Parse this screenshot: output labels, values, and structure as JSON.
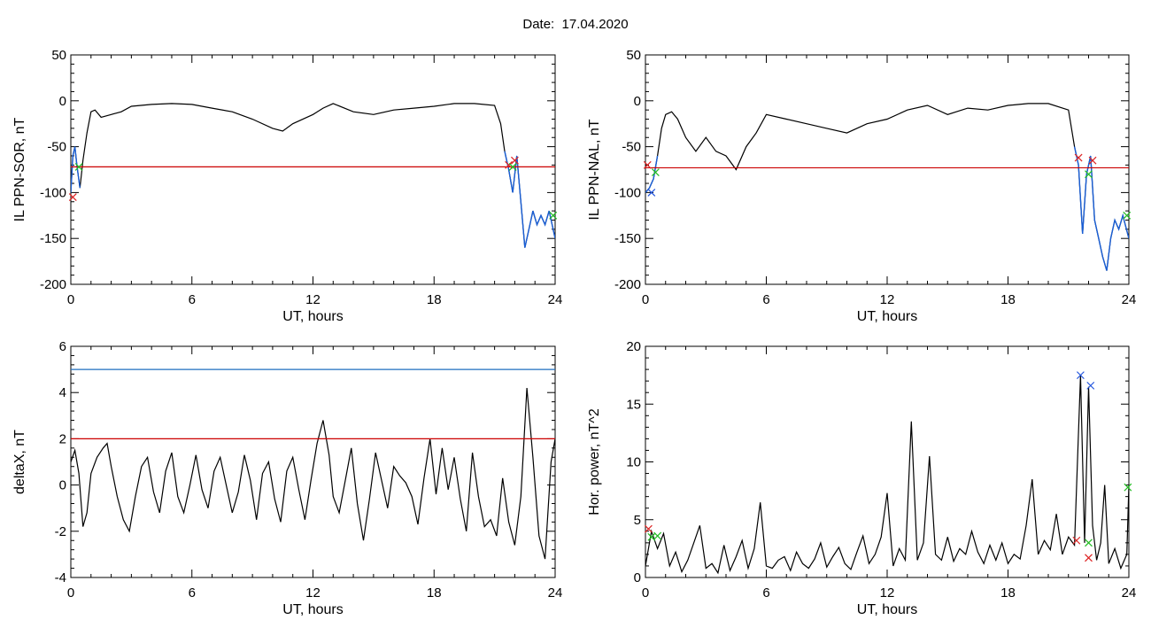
{
  "title": "Date:  17.04.2020",
  "colors": {
    "axes": "#000000",
    "data": "#000000",
    "threshold_red": "#cc0000",
    "threshold_blue": "#1f6fbf",
    "highlight_blue": "#1a5fd6",
    "marker_red": "#dd2222",
    "marker_green": "#22bb22",
    "marker_blue": "#2255dd"
  },
  "chart_data": [
    {
      "id": "sor",
      "type": "line",
      "xlabel": "UT, hours",
      "ylabel": "IL PPN-SOR, nT",
      "xlim": [
        0,
        24
      ],
      "ylim": [
        -200,
        50
      ],
      "xticks": [
        0,
        6,
        12,
        18,
        24
      ],
      "yticks": [
        -200,
        -150,
        -100,
        -50,
        0,
        50
      ],
      "grid": false,
      "threshold": {
        "value": -72,
        "color": "red"
      },
      "series": [
        {
          "x": [
            0,
            0.1,
            0.2,
            0.3,
            0.45,
            0.6,
            0.8,
            1.0,
            1.2,
            1.5,
            2.0,
            2.5,
            3.0,
            4.0,
            5.0,
            6.0,
            7.0,
            8.0,
            9.0,
            10.0,
            10.5,
            11.0,
            12.0,
            12.5,
            13.0,
            14.0,
            15.0,
            16.0,
            17.0,
            18.0,
            19.0,
            20.0,
            21.0,
            21.3,
            21.5,
            21.7,
            21.9,
            22.1,
            22.3,
            22.5,
            22.7,
            22.9,
            23.1,
            23.3,
            23.5,
            23.7,
            24.0
          ],
          "y": [
            -100,
            -60,
            -50,
            -70,
            -95,
            -65,
            -35,
            -12,
            -10,
            -18,
            -15,
            -12,
            -6,
            -4,
            -3,
            -4,
            -8,
            -12,
            -20,
            -30,
            -33,
            -25,
            -15,
            -8,
            -3,
            -12,
            -15,
            -10,
            -8,
            -6,
            -3,
            -3,
            -5,
            -25,
            -55,
            -75,
            -100,
            -60,
            -110,
            -160,
            -140,
            -120,
            -135,
            -125,
            -135,
            -120,
            -150
          ]
        }
      ],
      "highlight_spans": [
        [
          0,
          0.5
        ],
        [
          21.4,
          24
        ]
      ],
      "markers": [
        {
          "x": 0.1,
          "y": -105,
          "color": "red"
        },
        {
          "x": 0.4,
          "y": -72,
          "color": "green"
        },
        {
          "x": 21.7,
          "y": -70,
          "color": "red"
        },
        {
          "x": 22.0,
          "y": -65,
          "color": "red"
        },
        {
          "x": 21.9,
          "y": -72,
          "color": "green"
        },
        {
          "x": 23.9,
          "y": -125,
          "color": "green"
        }
      ]
    },
    {
      "id": "nal",
      "type": "line",
      "xlabel": "UT, hours",
      "ylabel": "IL PPN-NAL, nT",
      "xlim": [
        0,
        24
      ],
      "ylim": [
        -200,
        50
      ],
      "xticks": [
        0,
        6,
        12,
        18,
        24
      ],
      "yticks": [
        -200,
        -150,
        -100,
        -50,
        0,
        50
      ],
      "grid": false,
      "threshold": {
        "value": -73,
        "color": "red"
      },
      "series": [
        {
          "x": [
            0,
            0.2,
            0.4,
            0.6,
            0.8,
            1.0,
            1.3,
            1.6,
            2.0,
            2.5,
            3.0,
            3.5,
            4.0,
            4.5,
            5.0,
            5.5,
            6.0,
            7.0,
            8.0,
            9.0,
            10.0,
            11.0,
            12.0,
            13.0,
            14.0,
            15.0,
            16.0,
            17.0,
            18.0,
            19.0,
            20.0,
            21.0,
            21.3,
            21.5,
            21.7,
            21.9,
            22.1,
            22.3,
            22.5,
            22.7,
            22.9,
            23.1,
            23.3,
            23.5,
            23.7,
            24.0
          ],
          "y": [
            -100,
            -95,
            -85,
            -60,
            -30,
            -15,
            -12,
            -20,
            -40,
            -55,
            -40,
            -55,
            -60,
            -75,
            -50,
            -35,
            -15,
            -20,
            -25,
            -30,
            -35,
            -25,
            -20,
            -10,
            -5,
            -15,
            -8,
            -10,
            -5,
            -3,
            -3,
            -10,
            -50,
            -70,
            -145,
            -80,
            -60,
            -130,
            -150,
            -170,
            -185,
            -150,
            -130,
            -140,
            -125,
            -150
          ]
        }
      ],
      "highlight_spans": [
        [
          0,
          0.6
        ],
        [
          21.3,
          24
        ]
      ],
      "markers": [
        {
          "x": 0.1,
          "y": -70,
          "color": "red"
        },
        {
          "x": 0.3,
          "y": -100,
          "color": "blue"
        },
        {
          "x": 0.5,
          "y": -78,
          "color": "green"
        },
        {
          "x": 21.5,
          "y": -62,
          "color": "red"
        },
        {
          "x": 22.2,
          "y": -65,
          "color": "red"
        },
        {
          "x": 22.0,
          "y": -80,
          "color": "green"
        },
        {
          "x": 23.9,
          "y": -125,
          "color": "green"
        }
      ]
    },
    {
      "id": "deltax",
      "type": "line",
      "xlabel": "UT, hours",
      "ylabel": "deltaX, nT",
      "xlim": [
        0,
        24
      ],
      "ylim": [
        -4,
        6
      ],
      "xticks": [
        0,
        6,
        12,
        18,
        24
      ],
      "yticks": [
        -4,
        -2,
        0,
        2,
        4,
        6
      ],
      "grid": false,
      "thresholds": [
        {
          "value": 5,
          "color": "blue"
        },
        {
          "value": 2,
          "color": "red"
        }
      ],
      "series": [
        {
          "x": [
            0,
            0.2,
            0.4,
            0.6,
            0.8,
            1.0,
            1.3,
            1.6,
            1.8,
            2.0,
            2.3,
            2.6,
            2.9,
            3.2,
            3.5,
            3.8,
            4.1,
            4.4,
            4.7,
            5.0,
            5.3,
            5.6,
            5.9,
            6.2,
            6.5,
            6.8,
            7.1,
            7.4,
            7.7,
            8.0,
            8.3,
            8.6,
            8.9,
            9.2,
            9.5,
            9.8,
            10.1,
            10.4,
            10.7,
            11.0,
            11.3,
            11.6,
            11.9,
            12.2,
            12.5,
            12.8,
            13.0,
            13.3,
            13.6,
            13.9,
            14.2,
            14.5,
            14.8,
            15.1,
            15.4,
            15.7,
            16.0,
            16.3,
            16.6,
            16.9,
            17.2,
            17.5,
            17.8,
            18.1,
            18.4,
            18.7,
            19.0,
            19.3,
            19.6,
            19.9,
            20.2,
            20.5,
            20.8,
            21.1,
            21.4,
            21.7,
            22.0,
            22.3,
            22.6,
            22.9,
            23.2,
            23.5,
            23.8,
            24.0
          ],
          "y": [
            1.0,
            1.5,
            0.5,
            -1.8,
            -1.2,
            0.5,
            1.2,
            1.6,
            1.8,
            0.8,
            -0.5,
            -1.5,
            -2.0,
            -0.5,
            0.8,
            1.2,
            -0.3,
            -1.2,
            0.6,
            1.4,
            -0.5,
            -1.2,
            0.0,
            1.3,
            -0.2,
            -1.0,
            0.6,
            1.2,
            0.0,
            -1.2,
            -0.3,
            1.3,
            0.2,
            -1.5,
            0.5,
            1.0,
            -0.6,
            -1.6,
            0.6,
            1.2,
            -0.2,
            -1.5,
            0.2,
            1.8,
            2.8,
            1.3,
            -0.5,
            -1.2,
            0.2,
            1.6,
            -0.8,
            -2.4,
            -0.6,
            1.4,
            0.2,
            -1.0,
            0.8,
            0.4,
            0.1,
            -0.5,
            -1.7,
            0.3,
            2.0,
            -0.4,
            1.6,
            -0.2,
            1.2,
            -0.6,
            -2.0,
            1.4,
            -0.5,
            -1.8,
            -1.5,
            -2.2,
            0.3,
            -1.6,
            -2.6,
            -0.5,
            4.2,
            1.2,
            -2.2,
            -3.2,
            1.0,
            2.0
          ]
        }
      ]
    },
    {
      "id": "power",
      "type": "line",
      "xlabel": "UT, hours",
      "ylabel": "Hor. power, nT^2",
      "xlim": [
        0,
        24
      ],
      "ylim": [
        0,
        20
      ],
      "xticks": [
        0,
        6,
        12,
        18,
        24
      ],
      "yticks": [
        0,
        5,
        10,
        15,
        20
      ],
      "grid": false,
      "series": [
        {
          "x": [
            0,
            0.3,
            0.6,
            0.9,
            1.2,
            1.5,
            1.8,
            2.1,
            2.4,
            2.7,
            3.0,
            3.3,
            3.6,
            3.9,
            4.2,
            4.5,
            4.8,
            5.1,
            5.4,
            5.7,
            6.0,
            6.3,
            6.6,
            6.9,
            7.2,
            7.5,
            7.8,
            8.1,
            8.4,
            8.7,
            9.0,
            9.3,
            9.6,
            9.9,
            10.2,
            10.5,
            10.8,
            11.1,
            11.4,
            11.7,
            12.0,
            12.3,
            12.6,
            12.9,
            13.2,
            13.5,
            13.8,
            14.1,
            14.4,
            14.7,
            15.0,
            15.3,
            15.6,
            15.9,
            16.2,
            16.5,
            16.8,
            17.1,
            17.4,
            17.7,
            18.0,
            18.3,
            18.6,
            18.9,
            19.2,
            19.5,
            19.8,
            20.1,
            20.4,
            20.7,
            21.0,
            21.3,
            21.6,
            21.8,
            22.0,
            22.2,
            22.4,
            22.6,
            22.8,
            23.0,
            23.3,
            23.6,
            23.9,
            24.0
          ],
          "y": [
            1.0,
            4.0,
            2.5,
            3.8,
            1.0,
            2.2,
            0.5,
            1.5,
            3.0,
            4.5,
            0.8,
            1.2,
            0.4,
            2.8,
            0.6,
            1.8,
            3.2,
            0.8,
            2.5,
            6.5,
            1.0,
            0.8,
            1.5,
            1.8,
            0.6,
            2.2,
            1.2,
            0.8,
            1.6,
            3.0,
            0.9,
            1.8,
            2.6,
            1.2,
            0.7,
            2.2,
            3.6,
            1.2,
            2.0,
            3.5,
            7.3,
            1.0,
            2.5,
            1.5,
            13.5,
            1.5,
            3.0,
            10.5,
            2.0,
            1.5,
            3.5,
            1.4,
            2.5,
            2.0,
            4.0,
            2.2,
            1.2,
            2.8,
            1.5,
            3.0,
            1.2,
            2.0,
            1.6,
            4.5,
            8.5,
            2.0,
            3.2,
            2.4,
            5.5,
            2.0,
            3.5,
            2.8,
            17.5,
            3.0,
            16.5,
            4.5,
            1.5,
            3.0,
            8.0,
            1.2,
            2.5,
            0.8,
            2.0,
            8.0
          ]
        }
      ],
      "markers": [
        {
          "x": 0.15,
          "y": 4.2,
          "color": "red"
        },
        {
          "x": 0.3,
          "y": 3.5,
          "color": "green"
        },
        {
          "x": 0.6,
          "y": 3.6,
          "color": "green"
        },
        {
          "x": 21.4,
          "y": 3.2,
          "color": "red"
        },
        {
          "x": 22.0,
          "y": 1.7,
          "color": "red"
        },
        {
          "x": 22.0,
          "y": 3.0,
          "color": "green"
        },
        {
          "x": 21.6,
          "y": 17.5,
          "color": "blue"
        },
        {
          "x": 22.1,
          "y": 16.6,
          "color": "blue"
        },
        {
          "x": 23.95,
          "y": 7.8,
          "color": "green"
        }
      ]
    }
  ]
}
